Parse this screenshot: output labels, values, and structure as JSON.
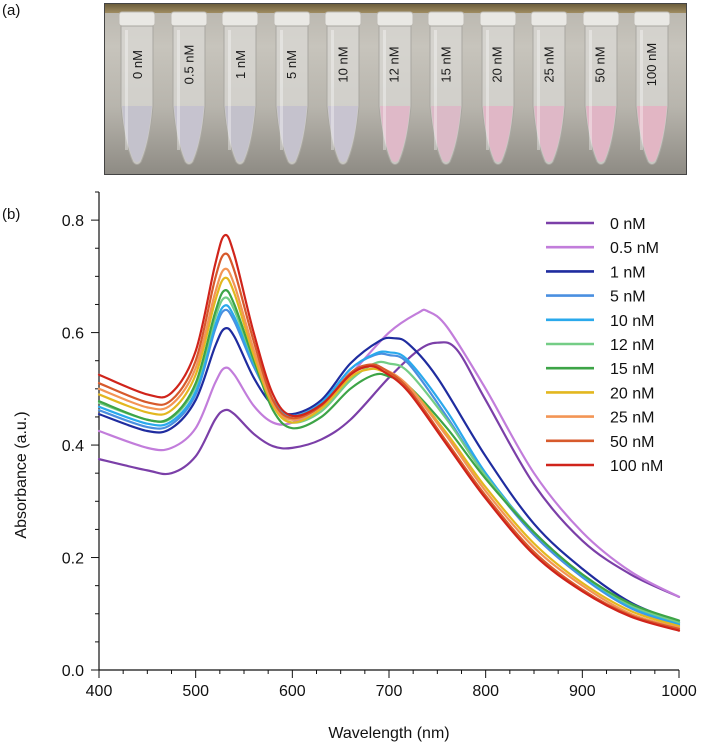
{
  "panel_labels": {
    "a": "(a)",
    "b": "(b)"
  },
  "photo": {
    "tubes": [
      {
        "label": "0 nM",
        "color": "#c4c2cc"
      },
      {
        "label": "0.5 nM",
        "color": "#c6c3cf"
      },
      {
        "label": "1 nM",
        "color": "#c3c1cb"
      },
      {
        "label": "5 nM",
        "color": "#c5c2cd"
      },
      {
        "label": "10 nM",
        "color": "#c8c4d0"
      },
      {
        "label": "12 nM",
        "color": "#dfb9c8"
      },
      {
        "label": "15 nM",
        "color": "#dbbac7"
      },
      {
        "label": "20 nM",
        "color": "#e0b7c6"
      },
      {
        "label": "25 nM",
        "color": "#dfb8c7"
      },
      {
        "label": "50 nM",
        "color": "#e0b5c5"
      },
      {
        "label": "100 nM",
        "color": "#e2b6c4"
      }
    ]
  },
  "chart_data": {
    "type": "line",
    "xlabel": "Wavelength (nm)",
    "ylabel": "Absorbance (a.u.)",
    "xlim": [
      400,
      1000
    ],
    "ylim": [
      0.0,
      0.85
    ],
    "xticks": [
      400,
      500,
      600,
      700,
      800,
      900,
      1000
    ],
    "yticks": [
      0.0,
      0.2,
      0.4,
      0.6,
      0.8
    ],
    "xtick_labels": [
      "400",
      "500",
      "600",
      "700",
      "800",
      "900",
      "1000"
    ],
    "ytick_labels": [
      "0.0",
      "0.2",
      "0.4",
      "0.6",
      "0.8"
    ],
    "legend_position": "top-right",
    "series": [
      {
        "name": "0 nM",
        "color": "#7b3fa8",
        "x": [
          400,
          450,
          475,
          500,
          520,
          530,
          540,
          560,
          580,
          600,
          630,
          660,
          700,
          730,
          750,
          770,
          800,
          850,
          900,
          950,
          1000
        ],
        "y": [
          0.375,
          0.355,
          0.35,
          0.38,
          0.445,
          0.462,
          0.455,
          0.42,
          0.398,
          0.395,
          0.41,
          0.445,
          0.52,
          0.568,
          0.582,
          0.57,
          0.48,
          0.33,
          0.23,
          0.17,
          0.13
        ]
      },
      {
        "name": "0.5 nM",
        "color": "#c27ddb",
        "x": [
          400,
          450,
          475,
          500,
          520,
          530,
          540,
          560,
          580,
          600,
          630,
          660,
          700,
          730,
          740,
          760,
          800,
          850,
          900,
          950,
          1000
        ],
        "y": [
          0.425,
          0.395,
          0.395,
          0.43,
          0.51,
          0.537,
          0.525,
          0.47,
          0.44,
          0.44,
          0.47,
          0.525,
          0.6,
          0.635,
          0.638,
          0.61,
          0.5,
          0.35,
          0.245,
          0.175,
          0.13
        ]
      },
      {
        "name": "1 nM",
        "color": "#1f2c9f",
        "x": [
          400,
          450,
          475,
          500,
          520,
          530,
          540,
          560,
          580,
          600,
          630,
          660,
          690,
          705,
          720,
          750,
          800,
          850,
          900,
          950,
          1000
        ],
        "y": [
          0.455,
          0.425,
          0.43,
          0.48,
          0.575,
          0.607,
          0.593,
          0.52,
          0.47,
          0.455,
          0.48,
          0.545,
          0.585,
          0.59,
          0.58,
          0.52,
          0.38,
          0.26,
          0.18,
          0.12,
          0.085
        ]
      },
      {
        "name": "5 nM",
        "color": "#4a8fe0",
        "x": [
          400,
          450,
          475,
          500,
          520,
          530,
          540,
          560,
          580,
          600,
          630,
          660,
          685,
          700,
          720,
          760,
          800,
          850,
          900,
          950,
          1000
        ],
        "y": [
          0.462,
          0.432,
          0.437,
          0.49,
          0.605,
          0.64,
          0.62,
          0.54,
          0.478,
          0.452,
          0.475,
          0.535,
          0.56,
          0.56,
          0.545,
          0.45,
          0.345,
          0.24,
          0.165,
          0.11,
          0.08
        ]
      },
      {
        "name": "10 nM",
        "color": "#2aa9ec",
        "x": [
          400,
          450,
          475,
          500,
          520,
          530,
          540,
          560,
          580,
          600,
          630,
          660,
          685,
          700,
          720,
          760,
          800,
          850,
          900,
          950,
          1000
        ],
        "y": [
          0.468,
          0.438,
          0.442,
          0.495,
          0.612,
          0.648,
          0.628,
          0.545,
          0.48,
          0.452,
          0.475,
          0.535,
          0.562,
          0.565,
          0.55,
          0.46,
          0.35,
          0.245,
          0.168,
          0.112,
          0.082
        ]
      },
      {
        "name": "12 nM",
        "color": "#74cd86",
        "x": [
          400,
          450,
          475,
          500,
          520,
          530,
          540,
          560,
          580,
          600,
          630,
          660,
          685,
          700,
          720,
          760,
          800,
          850,
          900,
          950,
          1000
        ],
        "y": [
          0.475,
          0.445,
          0.448,
          0.505,
          0.625,
          0.662,
          0.64,
          0.55,
          0.47,
          0.44,
          0.46,
          0.515,
          0.545,
          0.545,
          0.53,
          0.445,
          0.345,
          0.245,
          0.17,
          0.115,
          0.085
        ]
      },
      {
        "name": "15 nM",
        "color": "#3da447",
        "x": [
          400,
          450,
          475,
          500,
          520,
          530,
          540,
          560,
          580,
          600,
          630,
          660,
          685,
          700,
          720,
          760,
          800,
          850,
          900,
          950,
          1000
        ],
        "y": [
          0.478,
          0.445,
          0.45,
          0.51,
          0.635,
          0.675,
          0.65,
          0.552,
          0.462,
          0.43,
          0.45,
          0.5,
          0.525,
          0.522,
          0.505,
          0.43,
          0.34,
          0.245,
          0.17,
          0.118,
          0.088
        ]
      },
      {
        "name": "20 nM",
        "color": "#e3b71f",
        "x": [
          400,
          450,
          475,
          500,
          520,
          530,
          540,
          560,
          580,
          600,
          630,
          660,
          680,
          695,
          720,
          760,
          800,
          850,
          900,
          950,
          1000
        ],
        "y": [
          0.49,
          0.458,
          0.462,
          0.525,
          0.655,
          0.697,
          0.67,
          0.56,
          0.47,
          0.44,
          0.465,
          0.52,
          0.535,
          0.53,
          0.505,
          0.42,
          0.325,
          0.225,
          0.155,
          0.105,
          0.078
        ]
      },
      {
        "name": "25 nM",
        "color": "#f39555",
        "x": [
          400,
          450,
          475,
          500,
          520,
          530,
          540,
          560,
          580,
          600,
          630,
          660,
          680,
          695,
          720,
          760,
          800,
          850,
          900,
          950,
          1000
        ],
        "y": [
          0.5,
          0.467,
          0.472,
          0.537,
          0.67,
          0.713,
          0.685,
          0.57,
          0.475,
          0.445,
          0.47,
          0.525,
          0.54,
          0.535,
          0.505,
          0.415,
          0.318,
          0.218,
          0.15,
          0.1,
          0.075
        ]
      },
      {
        "name": "50 nM",
        "color": "#d75a2c",
        "x": [
          400,
          450,
          475,
          500,
          520,
          530,
          540,
          560,
          580,
          600,
          630,
          660,
          680,
          695,
          720,
          760,
          800,
          850,
          900,
          950,
          1000
        ],
        "y": [
          0.51,
          0.476,
          0.48,
          0.55,
          0.695,
          0.74,
          0.71,
          0.585,
          0.48,
          0.448,
          0.47,
          0.528,
          0.543,
          0.535,
          0.5,
          0.405,
          0.31,
          0.21,
          0.143,
          0.097,
          0.073
        ]
      },
      {
        "name": "100 nM",
        "color": "#d0241b",
        "x": [
          400,
          450,
          475,
          500,
          520,
          530,
          540,
          560,
          580,
          600,
          630,
          660,
          680,
          695,
          720,
          760,
          800,
          850,
          900,
          950,
          1000
        ],
        "y": [
          0.525,
          0.49,
          0.493,
          0.567,
          0.72,
          0.773,
          0.738,
          0.6,
          0.49,
          0.452,
          0.472,
          0.525,
          0.54,
          0.53,
          0.495,
          0.4,
          0.305,
          0.205,
          0.14,
          0.095,
          0.07
        ]
      }
    ]
  }
}
